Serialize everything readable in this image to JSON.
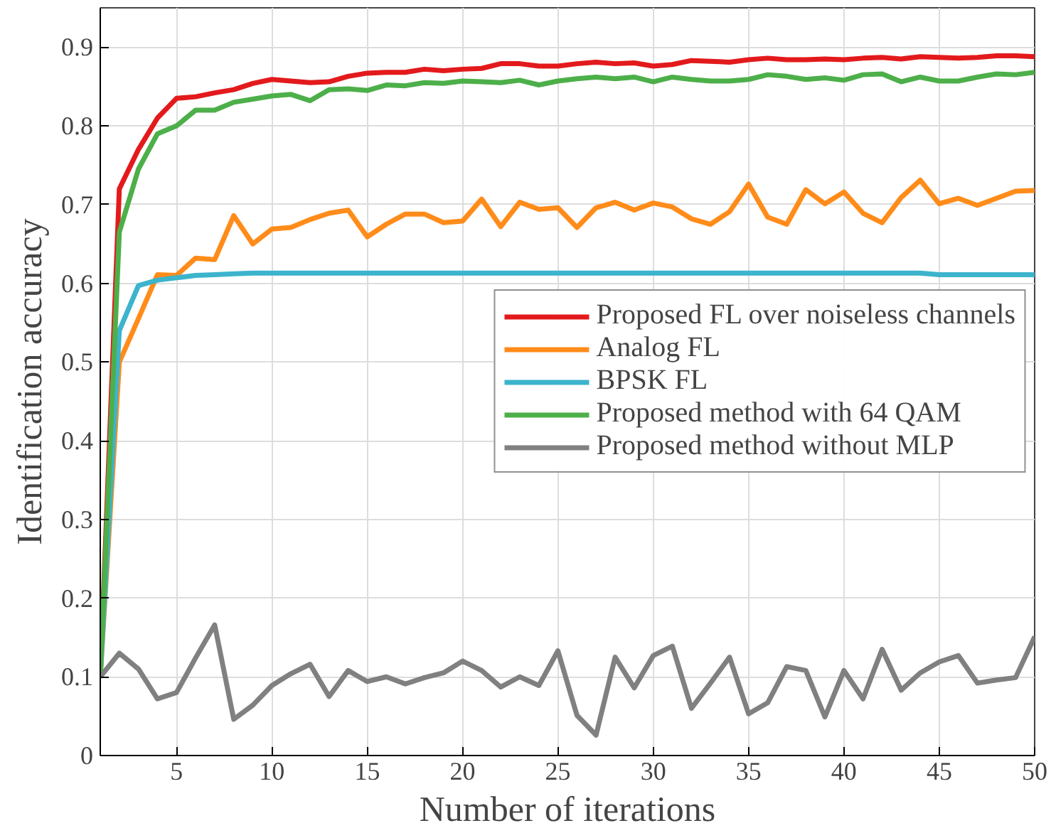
{
  "chart_data": {
    "type": "line",
    "xlabel": "Number of iterations",
    "ylabel": "Identification accuracy",
    "x": [
      1,
      2,
      3,
      4,
      5,
      6,
      7,
      8,
      9,
      10,
      11,
      12,
      13,
      14,
      15,
      16,
      17,
      18,
      19,
      20,
      21,
      22,
      23,
      24,
      25,
      26,
      27,
      28,
      29,
      30,
      31,
      32,
      33,
      34,
      35,
      36,
      37,
      38,
      39,
      40,
      41,
      42,
      43,
      44,
      45,
      46,
      47,
      48,
      49,
      50
    ],
    "series": [
      {
        "name": "Proposed FL over noiseless channels",
        "color": "#e31a1c",
        "values": [
          0.1,
          0.72,
          0.77,
          0.81,
          0.835,
          0.837,
          0.842,
          0.846,
          0.854,
          0.859,
          0.857,
          0.855,
          0.856,
          0.863,
          0.867,
          0.868,
          0.868,
          0.872,
          0.87,
          0.872,
          0.873,
          0.879,
          0.879,
          0.876,
          0.876,
          0.879,
          0.881,
          0.879,
          0.88,
          0.876,
          0.878,
          0.883,
          0.882,
          0.881,
          0.884,
          0.886,
          0.884,
          0.884,
          0.885,
          0.884,
          0.886,
          0.887,
          0.885,
          0.888,
          0.887,
          0.886,
          0.887,
          0.889,
          0.889,
          0.888
        ]
      },
      {
        "name": "Analog FL",
        "color": "#ff8c1a",
        "values": [
          0.1,
          0.5,
          0.555,
          0.611,
          0.61,
          0.632,
          0.63,
          0.686,
          0.65,
          0.669,
          0.671,
          0.681,
          0.689,
          0.693,
          0.659,
          0.675,
          0.688,
          0.688,
          0.677,
          0.679,
          0.707,
          0.672,
          0.703,
          0.694,
          0.696,
          0.671,
          0.696,
          0.703,
          0.693,
          0.702,
          0.697,
          0.682,
          0.675,
          0.691,
          0.726,
          0.684,
          0.675,
          0.719,
          0.701,
          0.716,
          0.689,
          0.677,
          0.709,
          0.731,
          0.701,
          0.708,
          0.699,
          0.708,
          0.717,
          0.718
        ]
      },
      {
        "name": "BPSK FL",
        "color": "#3cb4cc",
        "values": [
          0.1,
          0.54,
          0.597,
          0.604,
          0.607,
          0.61,
          0.611,
          0.612,
          0.613,
          0.613,
          0.613,
          0.613,
          0.613,
          0.613,
          0.613,
          0.613,
          0.613,
          0.613,
          0.613,
          0.613,
          0.613,
          0.613,
          0.613,
          0.613,
          0.613,
          0.613,
          0.613,
          0.613,
          0.613,
          0.613,
          0.613,
          0.613,
          0.613,
          0.613,
          0.613,
          0.613,
          0.613,
          0.613,
          0.613,
          0.613,
          0.613,
          0.613,
          0.613,
          0.613,
          0.611,
          0.611,
          0.611,
          0.611,
          0.611,
          0.611
        ]
      },
      {
        "name": "Proposed method with 64 QAM",
        "color": "#4daf4a",
        "values": [
          0.1,
          0.665,
          0.745,
          0.79,
          0.8,
          0.82,
          0.82,
          0.83,
          0.834,
          0.838,
          0.84,
          0.832,
          0.846,
          0.847,
          0.845,
          0.852,
          0.851,
          0.855,
          0.854,
          0.857,
          0.856,
          0.855,
          0.858,
          0.852,
          0.857,
          0.86,
          0.862,
          0.86,
          0.862,
          0.856,
          0.862,
          0.859,
          0.857,
          0.857,
          0.859,
          0.865,
          0.863,
          0.859,
          0.861,
          0.858,
          0.865,
          0.866,
          0.856,
          0.862,
          0.857,
          0.857,
          0.862,
          0.866,
          0.865,
          0.868
        ]
      },
      {
        "name": "Proposed method without MLP",
        "color": "#808080",
        "values": [
          0.1,
          0.13,
          0.11,
          0.072,
          0.08,
          0.124,
          0.166,
          0.046,
          0.064,
          0.089,
          0.104,
          0.116,
          0.075,
          0.108,
          0.094,
          0.1,
          0.091,
          0.099,
          0.105,
          0.12,
          0.108,
          0.087,
          0.1,
          0.089,
          0.133,
          0.051,
          0.026,
          0.125,
          0.086,
          0.127,
          0.139,
          0.06,
          0.092,
          0.125,
          0.053,
          0.067,
          0.113,
          0.108,
          0.049,
          0.108,
          0.072,
          0.135,
          0.083,
          0.105,
          0.119,
          0.127,
          0.092,
          0.096,
          0.099,
          0.151
        ]
      }
    ],
    "xlim": [
      1,
      50
    ],
    "xticks": [
      5,
      10,
      15,
      20,
      25,
      30,
      35,
      40,
      45,
      50
    ],
    "ylim": [
      0,
      0.95
    ],
    "yticks": [
      0,
      0.1,
      0.2,
      0.3,
      0.4,
      0.5,
      0.6,
      0.7,
      0.8,
      0.9
    ],
    "grid": true,
    "legend": "right",
    "line_style": "solid"
  }
}
